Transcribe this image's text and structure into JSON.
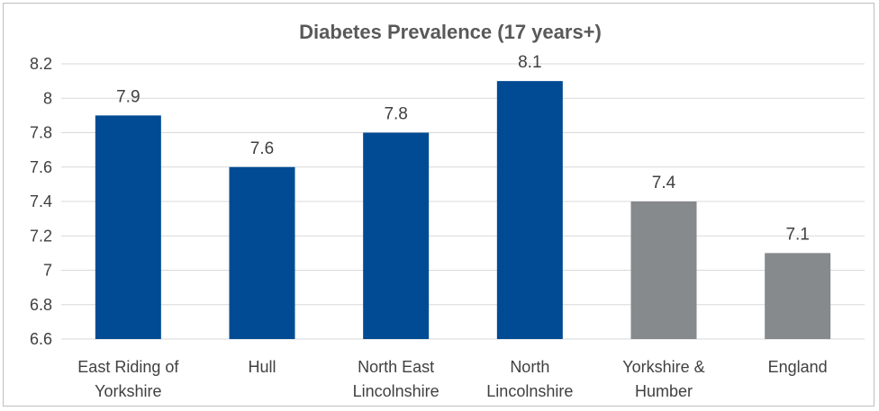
{
  "chart_data": {
    "type": "bar",
    "title": "Diabetes Prevalence (17 years+)",
    "xlabel": "",
    "ylabel": "",
    "categories": [
      [
        "East Riding of",
        "Yorkshire"
      ],
      [
        "Hull"
      ],
      [
        "North East",
        "Lincolnshire"
      ],
      [
        "North",
        "Lincolnshire"
      ],
      [
        "Yorkshire &",
        "Humber"
      ],
      [
        "England"
      ]
    ],
    "values": [
      7.9,
      7.6,
      7.8,
      8.1,
      7.4,
      7.1
    ],
    "data_labels": [
      "7.9",
      "7.6",
      "7.8",
      "8.1",
      "7.4",
      "7.1"
    ],
    "bar_colors": [
      "#004b93",
      "#004b93",
      "#004b93",
      "#004b93",
      "#868a8d",
      "#868a8d"
    ],
    "ylim": [
      6.6,
      8.2
    ],
    "yticks": [
      "6.6",
      "6.8",
      "7",
      "7.2",
      "7.4",
      "7.6",
      "7.8",
      "8",
      "8.2"
    ],
    "grid": true,
    "legend": "none"
  }
}
